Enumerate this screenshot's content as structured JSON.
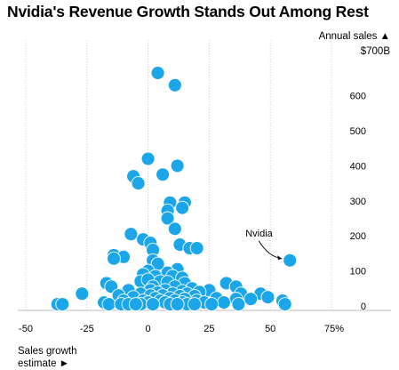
{
  "chart_data": {
    "type": "scatter",
    "title": "Nvidia's Revenue Growth Stands Out Among Rest",
    "xlabel": [
      "Sales growth",
      "estimate ►"
    ],
    "ylabel": [
      "Annual sales ▲",
      "$700B"
    ],
    "xlim": [
      -50,
      75
    ],
    "ylim": [
      -15,
      700
    ],
    "x_ticks": [
      "-50",
      "-25",
      "0",
      "25",
      "50",
      "75%"
    ],
    "x_tick_values": [
      -50,
      -25,
      0,
      25,
      50,
      75
    ],
    "y_ticks": [
      "0",
      "100",
      "200",
      "300",
      "400",
      "500",
      "600"
    ],
    "y_tick_values": [
      0,
      100,
      200,
      300,
      400,
      500,
      600
    ],
    "grid": "vertical dotted",
    "point_color": "#1aa6e8",
    "annotations": [
      {
        "text": "Nvidia",
        "x": 58,
        "y": 130
      }
    ],
    "points": [
      {
        "x": 4,
        "y": 665
      },
      {
        "x": 11,
        "y": 630
      },
      {
        "x": 0,
        "y": 420
      },
      {
        "x": 12,
        "y": 400
      },
      {
        "x": 6,
        "y": 375
      },
      {
        "x": -6,
        "y": 370
      },
      {
        "x": -4,
        "y": 350
      },
      {
        "x": 9,
        "y": 295
      },
      {
        "x": 15,
        "y": 295
      },
      {
        "x": 14,
        "y": 280
      },
      {
        "x": 8,
        "y": 272
      },
      {
        "x": 8,
        "y": 250
      },
      {
        "x": 11,
        "y": 220
      },
      {
        "x": -7,
        "y": 205
      },
      {
        "x": -2,
        "y": 190
      },
      {
        "x": 1,
        "y": 180
      },
      {
        "x": 13,
        "y": 175
      },
      {
        "x": 17,
        "y": 165
      },
      {
        "x": 20,
        "y": 165
      },
      {
        "x": 2,
        "y": 160
      },
      {
        "x": -14,
        "y": 145
      },
      {
        "x": -10,
        "y": 140
      },
      {
        "x": -14,
        "y": 135
      },
      {
        "x": 2,
        "y": 130
      },
      {
        "x": 4,
        "y": 120
      },
      {
        "x": 12,
        "y": 105
      },
      {
        "x": 0,
        "y": 100
      },
      {
        "x": 8,
        "y": 95
      },
      {
        "x": -2,
        "y": 90
      },
      {
        "x": 3,
        "y": 85
      },
      {
        "x": 10,
        "y": 85
      },
      {
        "x": 14,
        "y": 80
      },
      {
        "x": -3,
        "y": 70
      },
      {
        "x": 0,
        "y": 75
      },
      {
        "x": 5,
        "y": 70
      },
      {
        "x": 8,
        "y": 68
      },
      {
        "x": 15,
        "y": 65
      },
      {
        "x": 32,
        "y": 65
      },
      {
        "x": -17,
        "y": 65
      },
      {
        "x": 36,
        "y": 55
      },
      {
        "x": -15,
        "y": 55
      },
      {
        "x": 2,
        "y": 55
      },
      {
        "x": 11,
        "y": 55
      },
      {
        "x": 18,
        "y": 50
      },
      {
        "x": 25,
        "y": 45
      },
      {
        "x": -8,
        "y": 45
      },
      {
        "x": 1,
        "y": 45
      },
      {
        "x": 7,
        "y": 45
      },
      {
        "x": 14,
        "y": 42
      },
      {
        "x": 21,
        "y": 40
      },
      {
        "x": -27,
        "y": 35
      },
      {
        "x": 46,
        "y": 35
      },
      {
        "x": -3,
        "y": 35
      },
      {
        "x": 4,
        "y": 38
      },
      {
        "x": 10,
        "y": 35
      },
      {
        "x": 16,
        "y": 35
      },
      {
        "x": 38,
        "y": 35
      },
      {
        "x": -12,
        "y": 30
      },
      {
        "x": 1,
        "y": 30
      },
      {
        "x": 6,
        "y": 30
      },
      {
        "x": 13,
        "y": 28
      },
      {
        "x": 19,
        "y": 28
      },
      {
        "x": 49,
        "y": 25
      },
      {
        "x": 42,
        "y": 20
      },
      {
        "x": -6,
        "y": 25
      },
      {
        "x": 3,
        "y": 22
      },
      {
        "x": 9,
        "y": 22
      },
      {
        "x": 15,
        "y": 20
      },
      {
        "x": 28,
        "y": 22
      },
      {
        "x": 36,
        "y": 20
      },
      {
        "x": -10,
        "y": 15
      },
      {
        "x": -2,
        "y": 15
      },
      {
        "x": 5,
        "y": 15
      },
      {
        "x": 11,
        "y": 15
      },
      {
        "x": 20,
        "y": 15
      },
      {
        "x": 55,
        "y": 15
      },
      {
        "x": -18,
        "y": 10
      },
      {
        "x": 0,
        "y": 10
      },
      {
        "x": 7,
        "y": 10
      },
      {
        "x": 14,
        "y": 10
      },
      {
        "x": 23,
        "y": 10
      },
      {
        "x": 31,
        "y": 10
      },
      {
        "x": -37,
        "y": 5
      },
      {
        "x": -35,
        "y": 5
      },
      {
        "x": -16,
        "y": 5
      },
      {
        "x": -11,
        "y": 5
      },
      {
        "x": -8,
        "y": 5
      },
      {
        "x": -3,
        "y": 5
      },
      {
        "x": 2,
        "y": 5
      },
      {
        "x": 9,
        "y": 5
      },
      {
        "x": 16,
        "y": 5
      },
      {
        "x": 26,
        "y": 5
      },
      {
        "x": 37,
        "y": 5
      },
      {
        "x": 56,
        "y": 5
      },
      {
        "x": -5,
        "y": 5
      },
      {
        "x": 19,
        "y": 5
      },
      {
        "x": 12,
        "y": 5
      },
      {
        "x": 58,
        "y": 130
      }
    ]
  }
}
